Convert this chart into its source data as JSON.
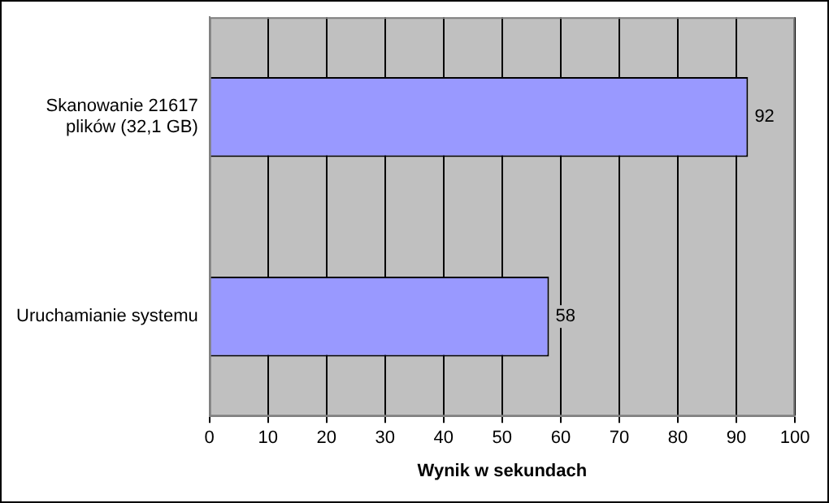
{
  "chart_data": {
    "type": "bar",
    "orientation": "horizontal",
    "xlabel": "Wynik w sekundach",
    "categories": [
      "Skanowanie 21617 plików (32,1 GB)",
      "Uruchamianie systemu"
    ],
    "values": [
      92,
      58
    ],
    "color": "#9999ff",
    "xlim": [
      0,
      100
    ],
    "xticks": [
      0,
      10,
      20,
      30,
      40,
      50,
      60,
      70,
      80,
      90,
      100
    ],
    "grid": "x",
    "data_labels": true,
    "legend": false
  }
}
